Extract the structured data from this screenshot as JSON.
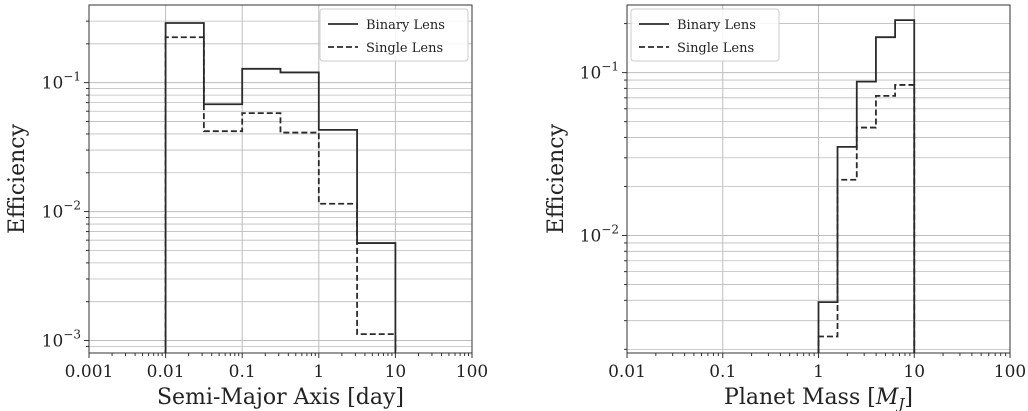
{
  "chart_data": [
    {
      "type": "step-histogram",
      "xscale": "log",
      "yscale": "log",
      "xlim": [
        0.001,
        100
      ],
      "ylim": [
        0.0008,
        0.4
      ],
      "grid": true,
      "legend_position": "top-right",
      "xlabel": "Semi-Major Axis [day]",
      "ylabel": "Efficiency",
      "xticks": [
        {
          "value": 0.001,
          "label": "0.001"
        },
        {
          "value": 0.01,
          "label": "0.01"
        },
        {
          "value": 0.1,
          "label": "0.1"
        },
        {
          "value": 1,
          "label": "1"
        },
        {
          "value": 10,
          "label": "10"
        },
        {
          "value": 100,
          "label": "100"
        }
      ],
      "yticks": [
        {
          "value": 0.001,
          "base": "10",
          "exp": "−3"
        },
        {
          "value": 0.01,
          "base": "10",
          "exp": "−2"
        },
        {
          "value": 0.1,
          "base": "10",
          "exp": "−1"
        }
      ],
      "bin_edges": [
        0.01,
        0.0316,
        0.1,
        0.316,
        1,
        3.16,
        10
      ],
      "series": [
        {
          "name": "Binary Lens",
          "style": "solid",
          "values": [
            0.29,
            0.068,
            0.128,
            0.12,
            0.043,
            0.0057
          ]
        },
        {
          "name": "Single Lens",
          "style": "dashed",
          "values": [
            0.225,
            0.042,
            0.058,
            0.041,
            0.0115,
            0.00112
          ]
        }
      ]
    },
    {
      "type": "step-histogram",
      "xscale": "log",
      "yscale": "log",
      "xlim": [
        0.01,
        100
      ],
      "ylim": [
        0.0019,
        0.26
      ],
      "grid": true,
      "legend_position": "top-left",
      "xlabel": "Planet Mass [",
      "xlabel_math": "M",
      "xlabel_sub": "J",
      "xlabel_close": "]",
      "ylabel": "Efficiency",
      "xticks": [
        {
          "value": 0.01,
          "label": "0.01"
        },
        {
          "value": 0.1,
          "label": "0.1"
        },
        {
          "value": 1,
          "label": "1"
        },
        {
          "value": 10,
          "label": "10"
        },
        {
          "value": 100,
          "label": "100"
        }
      ],
      "yticks": [
        {
          "value": 0.01,
          "base": "10",
          "exp": "−2"
        },
        {
          "value": 0.1,
          "base": "10",
          "exp": "−1"
        }
      ],
      "bin_edges": [
        1,
        1.58,
        2.51,
        3.98,
        6.31,
        10
      ],
      "series": [
        {
          "name": "Binary Lens",
          "style": "solid",
          "values": [
            0.0039,
            0.035,
            0.088,
            0.165,
            0.21
          ]
        },
        {
          "name": "Single Lens",
          "style": "dashed",
          "values": [
            0.0024,
            0.022,
            0.046,
            0.072,
            0.084
          ]
        }
      ]
    }
  ],
  "colors": {
    "line": "#2b2b2b",
    "grid": "#bdbdbd",
    "axes": "#333333"
  }
}
